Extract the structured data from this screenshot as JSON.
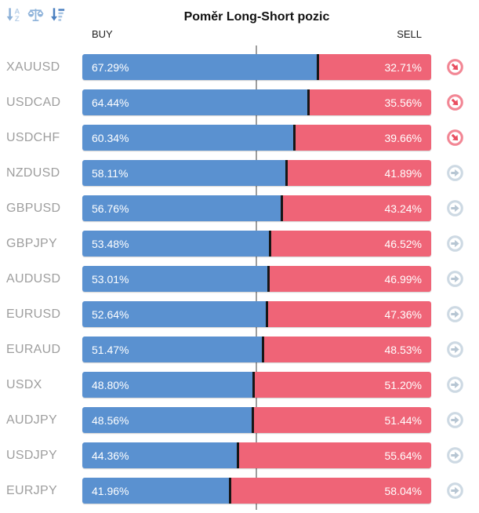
{
  "header": {
    "title": "Poměr Long-Short pozic",
    "buy_label": "BUY",
    "sell_label": "SELL"
  },
  "toolbar": {
    "sort_alpha_icon": "sort-alphabetical-descending",
    "balance_icon": "balance-scale",
    "sort_value_icon": "sort-amount-descending",
    "alpha_letter_top": "A",
    "alpha_letter_bottom": "Z"
  },
  "colors": {
    "buy_bar": "#5a91d0",
    "sell_bar": "#ef6477",
    "pair_label": "#9e9e9e",
    "center_line": "#9e9e9e",
    "segment_divider": "#161616",
    "signal_strong_ring": "#f28694",
    "signal_strong_arrow": "#e94e60",
    "signal_neutral_ring": "#cdd9e3",
    "signal_neutral_arrow": "#b7c6d3",
    "toolbar_sort_alpha_dark": "#8db1d8",
    "toolbar_sort_alpha_light": "#b9d0e8",
    "toolbar_balance": "#8fb3da",
    "toolbar_sort_value_dark": "#4b80c0",
    "toolbar_sort_value_light": "#a9c6e4"
  },
  "rows": [
    {
      "pair": "XAUUSD",
      "buy_label": "67.29%",
      "sell_label": "32.71%",
      "buy": 67.29,
      "sell": 32.71,
      "signal": "strong-sell"
    },
    {
      "pair": "USDCAD",
      "buy_label": "64.44%",
      "sell_label": "35.56%",
      "buy": 64.44,
      "sell": 35.56,
      "signal": "strong-sell"
    },
    {
      "pair": "USDCHF",
      "buy_label": "60.34%",
      "sell_label": "39.66%",
      "buy": 60.34,
      "sell": 39.66,
      "signal": "strong-sell"
    },
    {
      "pair": "NZDUSD",
      "buy_label": "58.11%",
      "sell_label": "41.89%",
      "buy": 58.11,
      "sell": 41.89,
      "signal": "neutral"
    },
    {
      "pair": "GBPUSD",
      "buy_label": "56.76%",
      "sell_label": "43.24%",
      "buy": 56.76,
      "sell": 43.24,
      "signal": "neutral"
    },
    {
      "pair": "GBPJPY",
      "buy_label": "53.48%",
      "sell_label": "46.52%",
      "buy": 53.48,
      "sell": 46.52,
      "signal": "neutral"
    },
    {
      "pair": "AUDUSD",
      "buy_label": "53.01%",
      "sell_label": "46.99%",
      "buy": 53.01,
      "sell": 46.99,
      "signal": "neutral"
    },
    {
      "pair": "EURUSD",
      "buy_label": "52.64%",
      "sell_label": "47.36%",
      "buy": 52.64,
      "sell": 47.36,
      "signal": "neutral"
    },
    {
      "pair": "EURAUD",
      "buy_label": "51.47%",
      "sell_label": "48.53%",
      "buy": 51.47,
      "sell": 48.53,
      "signal": "neutral"
    },
    {
      "pair": "USDX",
      "buy_label": "48.80%",
      "sell_label": "51.20%",
      "buy": 48.8,
      "sell": 51.2,
      "signal": "neutral"
    },
    {
      "pair": "AUDJPY",
      "buy_label": "48.56%",
      "sell_label": "51.44%",
      "buy": 48.56,
      "sell": 51.44,
      "signal": "neutral"
    },
    {
      "pair": "USDJPY",
      "buy_label": "44.36%",
      "sell_label": "55.64%",
      "buy": 44.36,
      "sell": 55.64,
      "signal": "neutral"
    },
    {
      "pair": "EURJPY",
      "buy_label": "41.96%",
      "sell_label": "58.04%",
      "buy": 41.96,
      "sell": 58.04,
      "signal": "neutral"
    }
  ],
  "chart_data": {
    "type": "bar",
    "orientation": "horizontal",
    "stacked": true,
    "title": "Poměr Long-Short pozic",
    "categories": [
      "XAUUSD",
      "USDCAD",
      "USDCHF",
      "NZDUSD",
      "GBPUSD",
      "GBPJPY",
      "AUDUSD",
      "EURUSD",
      "EURAUD",
      "USDX",
      "AUDJPY",
      "USDJPY",
      "EURJPY"
    ],
    "series": [
      {
        "name": "BUY",
        "color": "#5a91d0",
        "values": [
          67.29,
          64.44,
          60.34,
          58.11,
          56.76,
          53.48,
          53.01,
          52.64,
          51.47,
          48.8,
          48.56,
          44.36,
          41.96
        ]
      },
      {
        "name": "SELL",
        "color": "#ef6477",
        "values": [
          32.71,
          35.56,
          39.66,
          41.89,
          43.24,
          46.52,
          46.99,
          47.36,
          48.53,
          51.2,
          51.44,
          55.64,
          58.04
        ]
      }
    ],
    "xlim": [
      0,
      100
    ],
    "reference_line_at": 50,
    "grid": false,
    "legend_position": "top (BUY left, SELL right)",
    "value_labels": "percent shown inside each bar segment"
  }
}
